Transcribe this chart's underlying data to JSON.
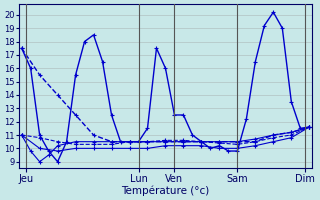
{
  "xlabel": "Température (°c)",
  "background_color": "#c8e8e8",
  "plot_bg_color": "#c8e8e8",
  "grid_color": "#999999",
  "line_color": "#0000cc",
  "ylim": [
    8.5,
    20.8
  ],
  "yticks": [
    9,
    10,
    11,
    12,
    13,
    14,
    15,
    16,
    17,
    18,
    19,
    20
  ],
  "xlim": [
    -0.3,
    32.3
  ],
  "xtick_positions": [
    0.5,
    13,
    17,
    24,
    31.5
  ],
  "xtick_labels": [
    "Jeu",
    "Lun",
    "Ven",
    "Sam",
    "Dim"
  ],
  "vline_positions": [
    0.5,
    13,
    17,
    24,
    31.5
  ],
  "num_points": 33,
  "series": [
    {
      "x": [
        0,
        2,
        4,
        6,
        8,
        10,
        12,
        14,
        16,
        18,
        20,
        22,
        24,
        26,
        28,
        30,
        32
      ],
      "y": [
        17.5,
        15.5,
        14.0,
        12.5,
        11.0,
        10.5,
        10.5,
        10.5,
        10.5,
        10.5,
        10.5,
        10.5,
        10.5,
        10.5,
        11.0,
        11.2,
        11.6
      ],
      "style": "--",
      "linewidth": 1.0
    },
    {
      "x": [
        0,
        1,
        2,
        3,
        4,
        5,
        6,
        7,
        8,
        9,
        10,
        11,
        12,
        13,
        14,
        15,
        16,
        17,
        18,
        19,
        20,
        21,
        22,
        23,
        24,
        25,
        26,
        27,
        28,
        29,
        30,
        31,
        32
      ],
      "y": [
        17.5,
        16.0,
        11.0,
        9.8,
        9.0,
        10.5,
        15.5,
        18.0,
        18.5,
        16.5,
        12.5,
        10.5,
        10.5,
        10.5,
        11.5,
        17.5,
        16.0,
        12.5,
        12.5,
        11.0,
        10.5,
        10.0,
        10.2,
        9.8,
        9.8,
        12.2,
        16.5,
        19.2,
        20.2,
        19.0,
        13.5,
        11.5,
        11.6
      ],
      "style": "-",
      "linewidth": 1.0
    },
    {
      "x": [
        0,
        2,
        4,
        6,
        8,
        10,
        12,
        14,
        16,
        18,
        20,
        22,
        24,
        26,
        28,
        30,
        32
      ],
      "y": [
        11.0,
        10.8,
        10.5,
        10.3,
        10.3,
        10.3,
        10.5,
        10.5,
        10.6,
        10.6,
        10.5,
        10.4,
        10.3,
        10.5,
        10.8,
        11.0,
        11.6
      ],
      "style": "--",
      "linewidth": 0.8
    },
    {
      "x": [
        0,
        2,
        4,
        6,
        8,
        10,
        12,
        14,
        16,
        18,
        20,
        22,
        24,
        26,
        28,
        30,
        32
      ],
      "y": [
        11.0,
        10.0,
        9.8,
        10.0,
        10.0,
        10.0,
        10.0,
        10.0,
        10.2,
        10.2,
        10.2,
        10.0,
        10.0,
        10.2,
        10.5,
        10.8,
        11.6
      ],
      "style": "-",
      "linewidth": 0.8
    },
    {
      "x": [
        0,
        1,
        2,
        3,
        4,
        6,
        8,
        10,
        12,
        14,
        16,
        18,
        20,
        22,
        24,
        26,
        28,
        30,
        32
      ],
      "y": [
        11.0,
        9.8,
        9.0,
        9.5,
        10.2,
        10.5,
        10.5,
        10.5,
        10.5,
        10.5,
        10.5,
        10.5,
        10.5,
        10.5,
        10.5,
        10.7,
        11.0,
        11.2,
        11.6
      ],
      "style": "-",
      "linewidth": 0.8
    }
  ]
}
